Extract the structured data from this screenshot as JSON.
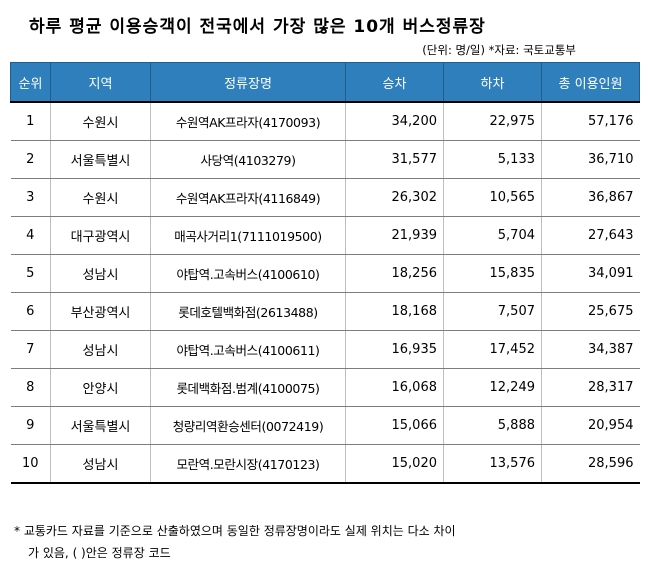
{
  "title": "하루 평균 이용승객이 전국에서 가장 많은 10개 버스정류장",
  "unit_note": "(단위: 명/일)  *자료: 국토교통부",
  "columns": [
    "순위",
    "지역",
    "정류장명",
    "승차",
    "하차",
    "총 이용인원"
  ],
  "rows": [
    {
      "rank": "1",
      "region": "수원시",
      "stop": "수원역AK프라자(4170093)",
      "board": "34,200",
      "alight": "22,975",
      "total": "57,176"
    },
    {
      "rank": "2",
      "region": "서울특별시",
      "stop": "사당역(4103279)",
      "board": "31,577",
      "alight": "5,133",
      "total": "36,710"
    },
    {
      "rank": "3",
      "region": "수원시",
      "stop": "수원역AK프라자(4116849)",
      "board": "26,302",
      "alight": "10,565",
      "total": "36,867"
    },
    {
      "rank": "4",
      "region": "대구광역시",
      "stop": "매곡사거리1(7111019500)",
      "board": "21,939",
      "alight": "5,704",
      "total": "27,643"
    },
    {
      "rank": "5",
      "region": "성남시",
      "stop": "야탑역.고속버스(4100610)",
      "board": "18,256",
      "alight": "15,835",
      "total": "34,091"
    },
    {
      "rank": "6",
      "region": "부산광역시",
      "stop": "롯데호텔백화점(2613488)",
      "board": "18,168",
      "alight": "7,507",
      "total": "25,675"
    },
    {
      "rank": "7",
      "region": "성남시",
      "stop": "야탑역.고속버스(4100611)",
      "board": "16,935",
      "alight": "17,452",
      "total": "34,387"
    },
    {
      "rank": "8",
      "region": "안양시",
      "stop": "롯데백화점.범계(4100075)",
      "board": "16,068",
      "alight": "12,249",
      "total": "28,317"
    },
    {
      "rank": "9",
      "region": "서울특별시",
      "stop": "청량리역환승센터(0072419)",
      "board": "15,066",
      "alight": "5,888",
      "total": "20,954"
    },
    {
      "rank": "10",
      "region": "성남시",
      "stop": "모란역.모란시장(4170123)",
      "board": "15,020",
      "alight": "13,576",
      "total": "28,596"
    }
  ],
  "footnote": {
    "line1": "* 교통카드 자료를 기준으로 산출하였으며 동일한 정류장명이라도 실제 위치는 다소 차이",
    "line2": "가 있음, ( )안은 정류장 코드"
  }
}
